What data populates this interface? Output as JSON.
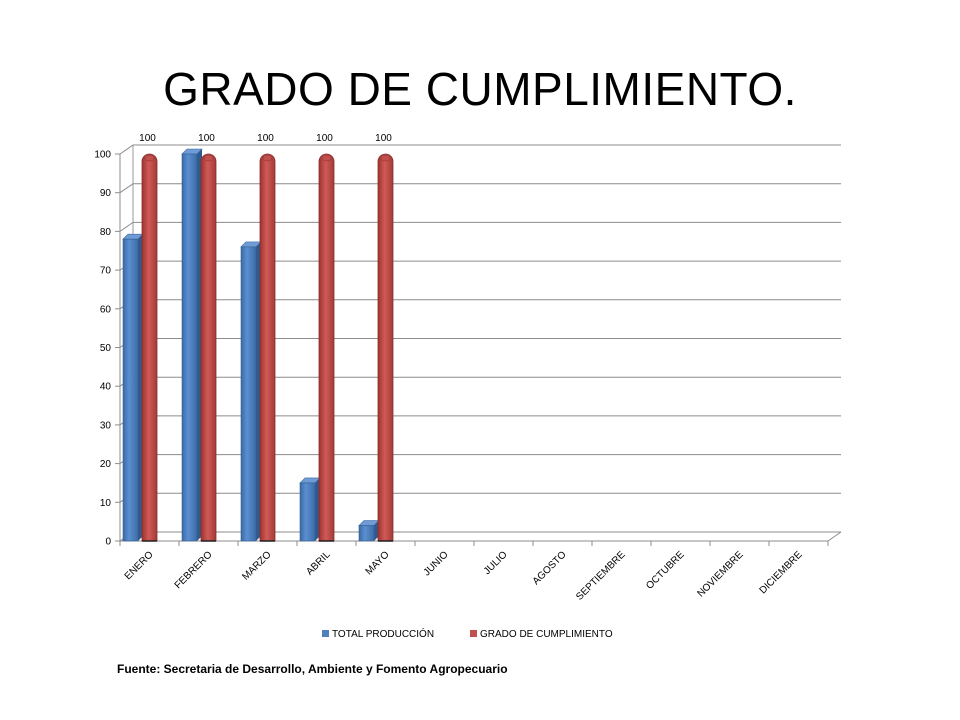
{
  "slide": {
    "title": "GRADO DE CUMPLIMIENTO.",
    "source": "Fuente: Secretaria de Desarrollo, Ambiente y Fomento Agropecuario"
  },
  "chart_data": {
    "type": "bar",
    "title": "",
    "xlabel": "",
    "ylabel": "",
    "ylim": [
      0,
      100
    ],
    "ytick_step": 10,
    "grid": true,
    "legend_position": "bottom",
    "categories": [
      "ENERO",
      "FEBRERO",
      "MARZO",
      "ABRIL",
      "MAYO",
      "JUNIO",
      "JULIO",
      "AGOSTO",
      "SEPTIEMBRE",
      "OCTUBRE",
      "NOVIEMBRE",
      "DICIEMBRE"
    ],
    "series": [
      {
        "name": "TOTAL PRODUCCIÓN",
        "color": "#4F81BD",
        "values": [
          78,
          100,
          76,
          15,
          4,
          null,
          null,
          null,
          null,
          null,
          null,
          null
        ],
        "data_labels": [
          "",
          "",
          "",
          "",
          "",
          "",
          "",
          "",
          "",
          "",
          "",
          ""
        ]
      },
      {
        "name": "GRADO DE CUMPLIMIENTO",
        "color": "#C0504D",
        "values": [
          100,
          100,
          100,
          100,
          100,
          null,
          null,
          null,
          null,
          null,
          null,
          null
        ],
        "data_labels": [
          "100",
          "100",
          "100",
          "100",
          "100",
          "",
          "",
          "",
          "",
          "",
          "",
          ""
        ]
      }
    ]
  }
}
